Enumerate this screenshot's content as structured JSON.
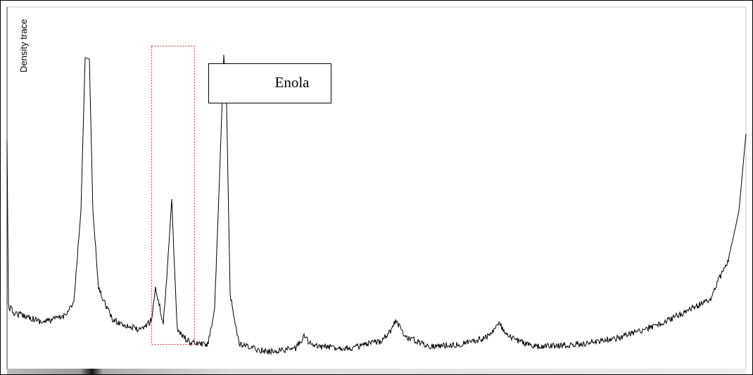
{
  "axis_label": "Density trace",
  "annotation": "Enola"
}
